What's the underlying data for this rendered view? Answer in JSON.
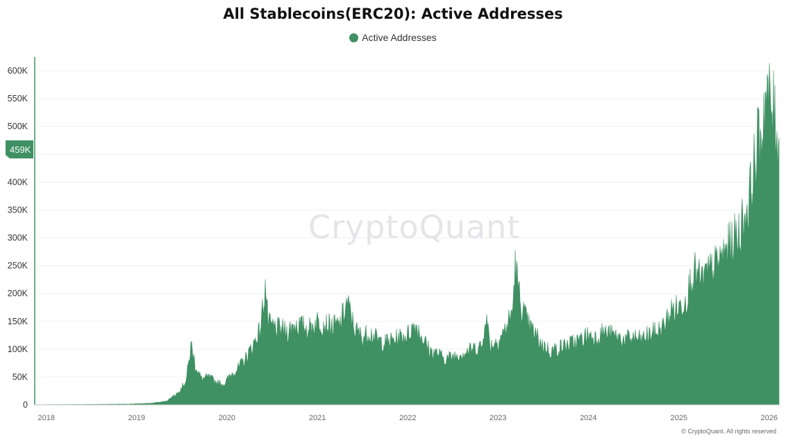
{
  "chart_data": {
    "type": "area",
    "title": "All Stablecoins(ERC20): Active Addresses",
    "legend": {
      "position": "top-center",
      "entries": [
        "Active Addresses"
      ]
    },
    "series": [
      {
        "name": "Active Addresses",
        "color": "#3f9062"
      }
    ],
    "y_ticks": [
      "0",
      "50K",
      "100K",
      "150K",
      "200K",
      "250K",
      "300K",
      "350K",
      "400K",
      "450K",
      "500K",
      "550K",
      "600K"
    ],
    "x_ticks": [
      "2018",
      "2019",
      "2020",
      "2021",
      "2022",
      "2023",
      "2024",
      "2025",
      "2026"
    ],
    "ylim": [
      0,
      625000
    ],
    "xlim": [
      "2017-11-15",
      "2026-02-10"
    ],
    "current_value_label": "459K",
    "current_value": 459000,
    "x": [
      "2017-11-15",
      "2018-06-01",
      "2018-12-01",
      "2019-03-01",
      "2019-05-01",
      "2019-06-15",
      "2019-07-20",
      "2019-08-10",
      "2019-08-25",
      "2019-09-20",
      "2019-10-20",
      "2019-11-20",
      "2019-12-20",
      "2020-01-15",
      "2020-02-15",
      "2020-03-15",
      "2020-04-15",
      "2020-05-15",
      "2020-06-05",
      "2020-06-15",
      "2020-07-01",
      "2020-08-01",
      "2020-09-01",
      "2020-10-01",
      "2020-11-01",
      "2020-12-01",
      "2021-01-01",
      "2021-02-01",
      "2021-03-01",
      "2021-04-01",
      "2021-05-01",
      "2021-06-01",
      "2021-07-01",
      "2021-08-01",
      "2021-09-01",
      "2021-10-01",
      "2021-11-01",
      "2021-12-01",
      "2022-01-01",
      "2022-02-01",
      "2022-03-01",
      "2022-04-01",
      "2022-05-01",
      "2022-06-01",
      "2022-07-01",
      "2022-08-01",
      "2022-09-01",
      "2022-10-01",
      "2022-11-01",
      "2022-11-10",
      "2022-12-01",
      "2023-01-01",
      "2023-02-01",
      "2023-03-01",
      "2023-03-11",
      "2023-04-01",
      "2023-05-01",
      "2023-06-01",
      "2023-07-01",
      "2023-08-01",
      "2023-09-01",
      "2023-10-01",
      "2023-11-01",
      "2023-12-01",
      "2024-01-01",
      "2024-02-01",
      "2024-03-01",
      "2024-04-01",
      "2024-05-01",
      "2024-06-01",
      "2024-07-01",
      "2024-08-01",
      "2024-09-01",
      "2024-10-01",
      "2024-11-01",
      "2024-12-01",
      "2025-01-01",
      "2025-02-01",
      "2025-03-01",
      "2025-04-01",
      "2025-05-01",
      "2025-06-01",
      "2025-07-01",
      "2025-08-01",
      "2025-09-01",
      "2025-10-01",
      "2025-10-20",
      "2025-11-01",
      "2025-11-15",
      "2025-12-01",
      "2025-12-15",
      "2026-01-01",
      "2026-01-15",
      "2026-02-01",
      "2026-02-10"
    ],
    "values": [
      300,
      800,
      1500,
      3000,
      7000,
      22000,
      45000,
      112000,
      75000,
      48000,
      52000,
      42000,
      38000,
      55000,
      68000,
      85000,
      110000,
      140000,
      225000,
      150000,
      145000,
      140000,
      135000,
      150000,
      145000,
      142000,
      155000,
      150000,
      145000,
      148000,
      190000,
      140000,
      125000,
      135000,
      120000,
      115000,
      120000,
      125000,
      130000,
      150000,
      125000,
      100000,
      95000,
      85000,
      90000,
      95000,
      100000,
      105000,
      110000,
      175000,
      110000,
      120000,
      140000,
      175000,
      260000,
      190000,
      150000,
      130000,
      110000,
      100000,
      105000,
      110000,
      115000,
      120000,
      130000,
      125000,
      135000,
      130000,
      125000,
      120000,
      125000,
      120000,
      130000,
      135000,
      145000,
      175000,
      180000,
      200000,
      250000,
      230000,
      245000,
      260000,
      280000,
      300000,
      320000,
      360000,
      400000,
      440000,
      480000,
      500000,
      570000,
      560000,
      540000,
      520000,
      459000
    ]
  }
}
